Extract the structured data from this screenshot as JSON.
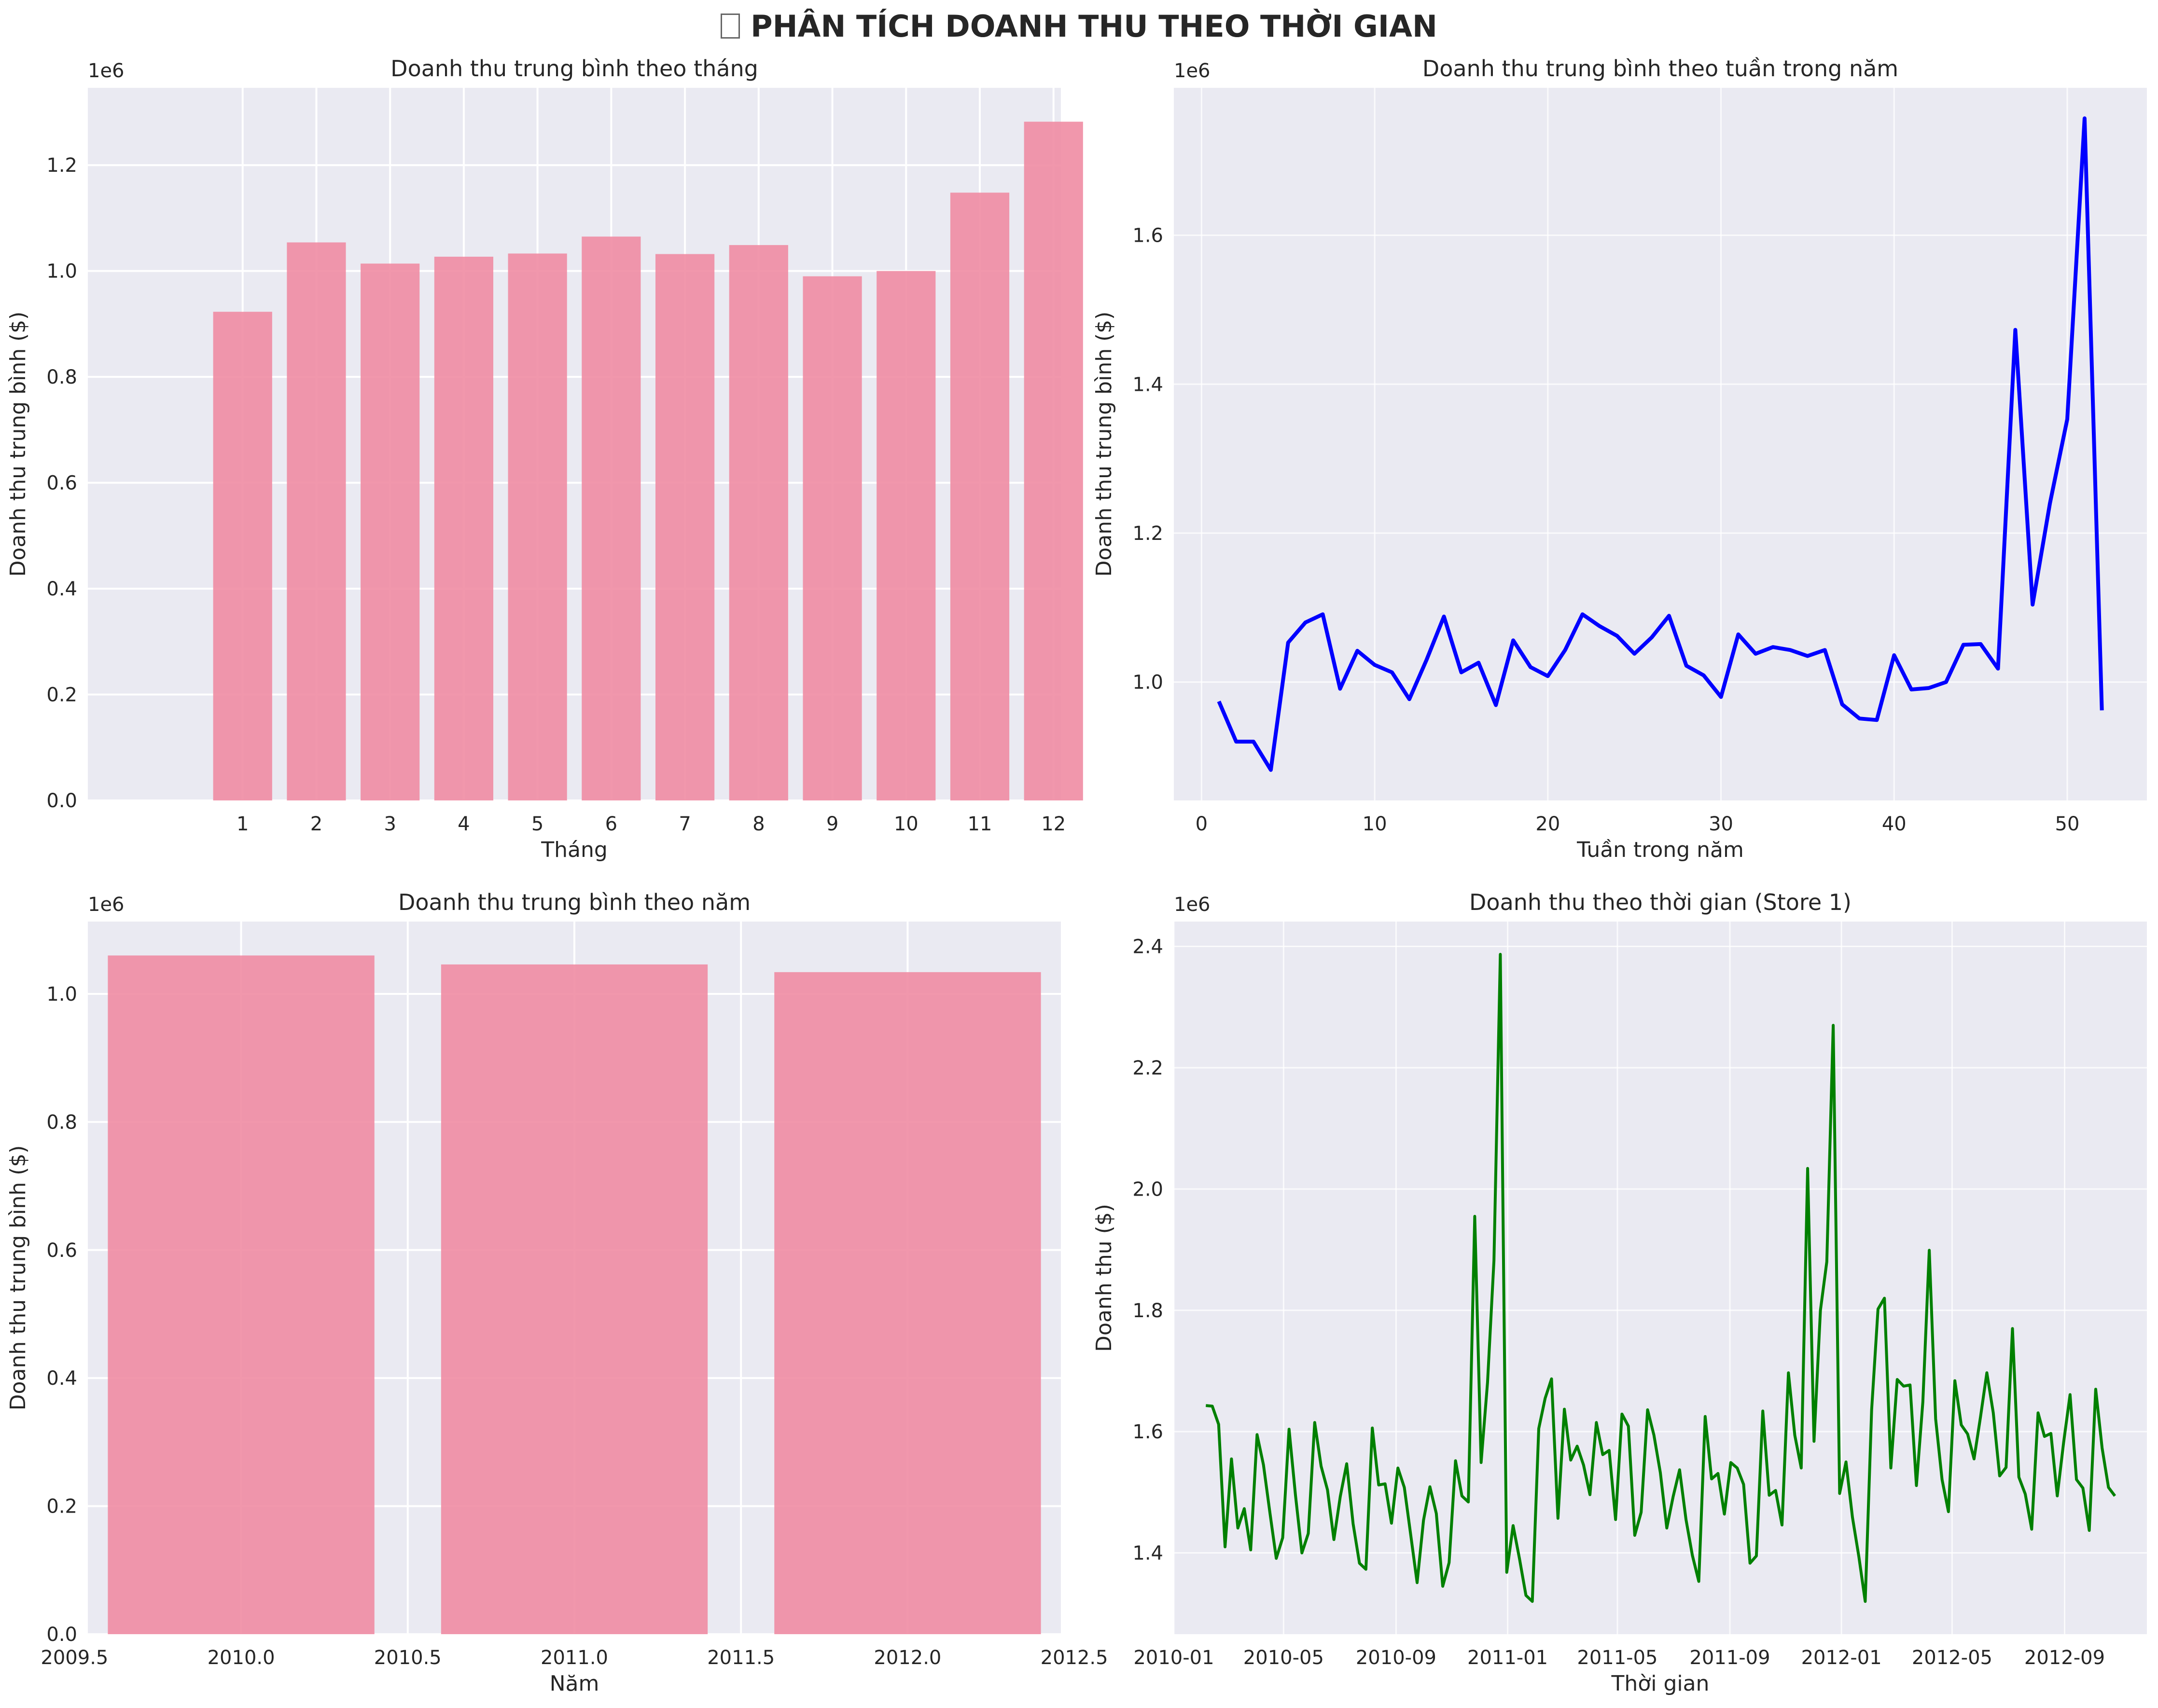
{
  "page": {
    "title": "PHÂN TÍCH DOANH THU THEO THỜI GIAN",
    "title_icon": "missing-glyph-icon"
  },
  "chart_data": [
    {
      "id": "monthly",
      "type": "bar",
      "title": "Doanh thu trung bình theo tháng",
      "xlabel": "Tháng",
      "ylabel": "Doanh thu trung bình ($)",
      "offset_label": "1e6",
      "categories": [
        "1",
        "2",
        "3",
        "4",
        "5",
        "6",
        "7",
        "8",
        "9",
        "10",
        "11",
        "12"
      ],
      "values": [
        0.923,
        1.054,
        1.014,
        1.027,
        1.033,
        1.065,
        1.032,
        1.049,
        0.99,
        1.0,
        1.148,
        1.282
      ],
      "ylim": [
        0,
        1.346
      ],
      "yticks": [
        "0.0",
        "0.2",
        "0.4",
        "0.6",
        "0.8",
        "1.0",
        "1.2"
      ],
      "color": "#f08ca3",
      "grid": true
    },
    {
      "id": "weekly",
      "type": "line",
      "title": "Doanh thu trung bình theo tuần trong năm",
      "xlabel": "Tuần trong năm",
      "ylabel": "Doanh thu trung bình ($)",
      "offset_label": "1e6",
      "x": [
        1,
        2,
        3,
        4,
        5,
        6,
        7,
        8,
        9,
        10,
        11,
        12,
        13,
        14,
        15,
        16,
        17,
        18,
        19,
        20,
        21,
        22,
        23,
        24,
        25,
        26,
        27,
        28,
        29,
        30,
        31,
        32,
        33,
        34,
        35,
        36,
        37,
        38,
        39,
        40,
        41,
        42,
        43,
        44,
        45,
        46,
        47,
        48,
        49,
        50,
        51,
        52
      ],
      "values": [
        0.974,
        0.92,
        0.92,
        0.882,
        1.053,
        1.08,
        1.091,
        0.991,
        1.042,
        1.023,
        1.013,
        0.977,
        1.03,
        1.088,
        1.013,
        1.026,
        0.969,
        1.056,
        1.02,
        1.008,
        1.043,
        1.091,
        1.075,
        1.062,
        1.038,
        1.06,
        1.089,
        1.022,
        1.009,
        0.98,
        1.064,
        1.038,
        1.047,
        1.043,
        1.035,
        1.043,
        0.97,
        0.951,
        0.949,
        1.036,
        0.99,
        0.992,
        1.0,
        1.05,
        1.051,
        1.018,
        1.473,
        1.104,
        1.24,
        1.353,
        1.757,
        0.962
      ],
      "xlim": [
        -1.6,
        54.6
      ],
      "ylim": [
        0.841,
        1.798
      ],
      "xticks": [
        "0",
        "10",
        "20",
        "30",
        "40",
        "50"
      ],
      "yticks": [
        "1.0",
        "1.2",
        "1.4",
        "1.6"
      ],
      "color": "#0000ff",
      "grid": true
    },
    {
      "id": "yearly",
      "type": "bar",
      "title": "Doanh thu trung bình theo năm",
      "xlabel": "Năm",
      "ylabel": "Doanh thu trung bình ($)",
      "offset_label": "1e6",
      "x": [
        2010,
        2011,
        2012
      ],
      "values": [
        1.06,
        1.046,
        1.034
      ],
      "bar_width": 0.8,
      "xlim": [
        2009.54,
        2012.46
      ],
      "ylim": [
        0,
        1.113
      ],
      "xticks": [
        "2009.5",
        "2010.0",
        "2010.5",
        "2011.0",
        "2011.5",
        "2012.0",
        "2012.5"
      ],
      "yticks": [
        "0.0",
        "0.2",
        "0.4",
        "0.6",
        "0.8",
        "1.0"
      ],
      "color": "#f08ca3",
      "grid": true
    },
    {
      "id": "store1",
      "type": "line",
      "title": "Doanh thu theo thời gian (Store 1)",
      "xlabel": "Thời gian",
      "ylabel": "Doanh thu ($)",
      "offset_label": "1e6",
      "x_start": "2010-02-05",
      "x_end": "2012-10-26",
      "values": [
        1.643,
        1.642,
        1.612,
        1.41,
        1.555,
        1.441,
        1.473,
        1.405,
        1.595,
        1.545,
        1.467,
        1.391,
        1.425,
        1.604,
        1.495,
        1.4,
        1.432,
        1.615,
        1.543,
        1.504,
        1.422,
        1.493,
        1.547,
        1.448,
        1.383,
        1.373,
        1.606,
        1.512,
        1.514,
        1.449,
        1.54,
        1.508,
        1.43,
        1.351,
        1.454,
        1.509,
        1.465,
        1.345,
        1.384,
        1.552,
        1.494,
        1.484,
        1.955,
        1.549,
        1.681,
        1.882,
        2.387,
        1.368,
        1.445,
        1.39,
        1.33,
        1.32,
        1.605,
        1.655,
        1.687,
        1.457,
        1.637,
        1.553,
        1.576,
        1.545,
        1.496,
        1.615,
        1.562,
        1.569,
        1.455,
        1.629,
        1.609,
        1.429,
        1.467,
        1.636,
        1.594,
        1.532,
        1.441,
        1.493,
        1.537,
        1.455,
        1.396,
        1.353,
        1.625,
        1.522,
        1.531,
        1.464,
        1.549,
        1.54,
        1.513,
        1.383,
        1.395,
        1.634,
        1.495,
        1.503,
        1.446,
        1.697,
        1.594,
        1.54,
        2.034,
        1.584,
        1.8,
        1.88,
        2.27,
        1.498,
        1.55,
        1.459,
        1.394,
        1.32,
        1.636,
        1.802,
        1.82,
        1.54,
        1.686,
        1.675,
        1.677,
        1.511,
        1.649,
        1.899,
        1.621,
        1.521,
        1.468,
        1.684,
        1.611,
        1.596,
        1.555,
        1.624,
        1.697,
        1.631,
        1.527,
        1.541,
        1.77,
        1.525,
        1.497,
        1.439,
        1.631,
        1.592,
        1.597,
        1.494,
        1.583,
        1.661,
        1.521,
        1.507,
        1.437,
        1.67,
        1.573,
        1.508,
        1.494
      ],
      "xlim": [
        "2010-01-01",
        "2012-11-30"
      ],
      "ylim": [
        1.266,
        2.441
      ],
      "xticks": [
        "2010-01",
        "2010-05",
        "2010-09",
        "2011-01",
        "2011-05",
        "2011-09",
        "2012-01",
        "2012-05",
        "2012-09"
      ],
      "yticks": [
        "1.4",
        "1.6",
        "1.8",
        "2.0",
        "2.2",
        "2.4"
      ],
      "color": "#008000",
      "grid": true
    }
  ]
}
